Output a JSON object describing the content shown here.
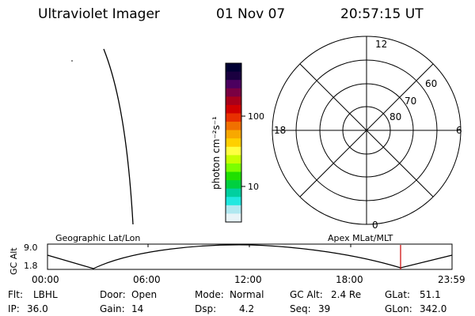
{
  "header": {
    "instrument": "Ultraviolet Imager",
    "date": "01 Nov 07",
    "time": "20:57:15 UT"
  },
  "colorbar": {
    "unit_label": "photon cm⁻²s⁻¹",
    "ticks": [
      "100",
      "10"
    ],
    "colors": [
      "#000033",
      "#1a0040",
      "#4b005f",
      "#7a0042",
      "#a8001a",
      "#d00000",
      "#e83000",
      "#f07000",
      "#f8a800",
      "#ffd000",
      "#ffff40",
      "#c8ff00",
      "#7cff00",
      "#20e000",
      "#00d040",
      "#00d0a0",
      "#20e8e0",
      "#b0e8f0",
      "#e8f4f8"
    ]
  },
  "polar": {
    "mlt_labels": {
      "top": "12",
      "bottom": "0",
      "left": "18",
      "right": "6"
    },
    "lat_labels": [
      "60",
      "70",
      "80"
    ]
  },
  "altitude_panel": {
    "ylabel": "GC Alt",
    "yticks": [
      "9.0",
      "1.8"
    ],
    "left_title": "Geographic Lat/Lon",
    "right_title": "Apex MLat/MLT",
    "xticks": [
      "00:00",
      "06:00",
      "12:00",
      "18:00",
      "23:59"
    ],
    "marker_color": "#cc0000"
  },
  "info": {
    "flt": {
      "label": "Flt:",
      "value": "LBHL"
    },
    "ip": {
      "label": "IP:",
      "value": "36.0"
    },
    "door": {
      "label": "Door:",
      "value": "Open"
    },
    "gain": {
      "label": "Gain:",
      "value": "14"
    },
    "mode": {
      "label": "Mode:",
      "value": "Normal"
    },
    "dsp": {
      "label": "Dsp:",
      "value": "4.2"
    },
    "gc_alt": {
      "label": "GC Alt:",
      "value": "2.4 Re"
    },
    "seq": {
      "label": "Seq:",
      "value": "39"
    },
    "glat": {
      "label": "GLat:",
      "value": "51.1"
    },
    "glon": {
      "label": "GLon:",
      "value": "342.0"
    }
  }
}
